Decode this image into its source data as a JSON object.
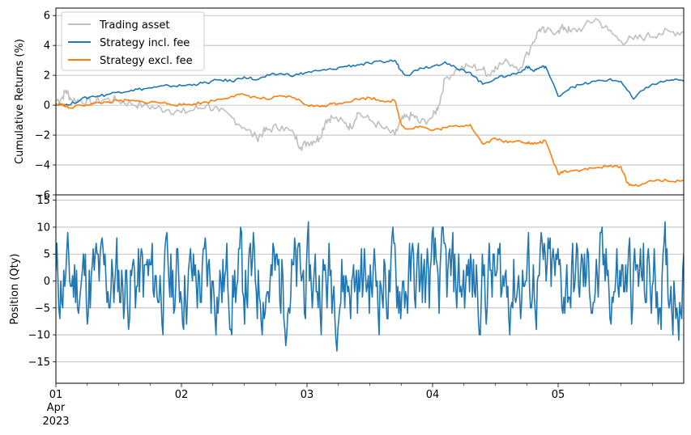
{
  "chart_data": [
    {
      "type": "line",
      "ylabel": "Cumulative Returns (%)",
      "ylim": [
        -6,
        6.5
      ],
      "yticks": [
        6,
        4,
        2,
        0,
        -2,
        -4,
        -6
      ],
      "xlim": [
        0,
        5
      ],
      "grid": "horizontal",
      "legend_position": "top-left",
      "series": [
        {
          "name": "Trading asset",
          "color": "#bfbfbf",
          "x": [
            0,
            0.05,
            0.08,
            0.12,
            0.2,
            0.3,
            0.4,
            0.5,
            0.6,
            0.7,
            0.8,
            0.9,
            1.0,
            1.1,
            1.2,
            1.3,
            1.4,
            1.5,
            1.6,
            1.65,
            1.7,
            1.8,
            1.9,
            1.95,
            2.0,
            2.05,
            2.1,
            2.15,
            2.2,
            2.3,
            2.35,
            2.4,
            2.5,
            2.6,
            2.7,
            2.75,
            2.8,
            2.85,
            2.9,
            3.0,
            3.05,
            3.1,
            3.2,
            3.3,
            3.4,
            3.45,
            3.5,
            3.6,
            3.7,
            3.8,
            3.85,
            3.9,
            4.0,
            4.05,
            4.1,
            4.2,
            4.3,
            4.4,
            4.5,
            4.6,
            4.7,
            4.8,
            4.9,
            5.0
          ],
          "values": [
            0.3,
            0.5,
            1.0,
            0.4,
            0.3,
            0.2,
            0.4,
            0.3,
            0.1,
            0.0,
            -0.2,
            -0.3,
            -0.5,
            -0.3,
            0.0,
            -0.4,
            -0.8,
            -1.5,
            -2.2,
            -1.8,
            -1.6,
            -1.4,
            -2.0,
            -2.8,
            -2.5,
            -2.4,
            -2.2,
            -1.0,
            -0.8,
            -1.2,
            -1.5,
            -0.5,
            -1.0,
            -1.5,
            -2.0,
            -1.0,
            -0.8,
            -0.7,
            -1.2,
            -0.8,
            0.0,
            1.8,
            2.4,
            2.6,
            2.4,
            2.0,
            2.6,
            2.9,
            2.5,
            4.2,
            5.1,
            4.9,
            5.0,
            5.2,
            4.9,
            5.2,
            5.8,
            5.0,
            4.3,
            4.4,
            4.6,
            4.8,
            4.9,
            4.9
          ]
        },
        {
          "name": "Strategy incl. fee",
          "color": "#1f77b4",
          "x": [
            0,
            0.1,
            0.2,
            0.3,
            0.4,
            0.5,
            0.6,
            0.7,
            0.8,
            0.9,
            1.0,
            1.1,
            1.2,
            1.3,
            1.4,
            1.5,
            1.6,
            1.7,
            1.8,
            1.9,
            2.0,
            2.1,
            2.2,
            2.3,
            2.4,
            2.5,
            2.6,
            2.7,
            2.75,
            2.8,
            2.9,
            3.0,
            3.1,
            3.2,
            3.3,
            3.4,
            3.5,
            3.6,
            3.7,
            3.75,
            3.8,
            3.85,
            3.9,
            4.0,
            4.1,
            4.2,
            4.3,
            4.4,
            4.5,
            4.6,
            4.7,
            4.8,
            4.9,
            5.0
          ],
          "values": [
            0.1,
            0.0,
            0.4,
            0.6,
            0.7,
            0.9,
            1.0,
            1.1,
            1.2,
            1.3,
            1.3,
            1.4,
            1.5,
            1.7,
            1.6,
            1.9,
            1.7,
            2.0,
            2.1,
            2.0,
            2.2,
            2.3,
            2.4,
            2.6,
            2.7,
            2.8,
            2.9,
            3.0,
            2.3,
            2.0,
            2.5,
            2.6,
            2.9,
            2.4,
            2.2,
            1.4,
            1.8,
            2.0,
            2.2,
            2.6,
            2.3,
            2.5,
            2.6,
            0.6,
            1.2,
            1.4,
            1.6,
            1.7,
            1.6,
            0.4,
            1.2,
            1.5,
            1.7,
            1.6
          ]
        },
        {
          "name": "Strategy excl. fee",
          "color": "#ff7f0e",
          "x": [
            0,
            0.05,
            0.1,
            0.2,
            0.3,
            0.4,
            0.5,
            0.6,
            0.7,
            0.8,
            0.9,
            1.0,
            1.1,
            1.2,
            1.3,
            1.4,
            1.5,
            1.6,
            1.7,
            1.8,
            1.9,
            2.0,
            2.1,
            2.2,
            2.3,
            2.4,
            2.5,
            2.6,
            2.7,
            2.75,
            2.8,
            2.9,
            3.0,
            3.1,
            3.2,
            3.3,
            3.4,
            3.5,
            3.6,
            3.7,
            3.75,
            3.8,
            3.85,
            3.9,
            4.0,
            4.05,
            4.1,
            4.2,
            4.3,
            4.4,
            4.5,
            4.55,
            4.6,
            4.7,
            4.8,
            4.9,
            5.0
          ],
          "values": [
            0.0,
            0.1,
            -0.2,
            0.0,
            0.1,
            0.2,
            0.3,
            0.3,
            0.2,
            0.2,
            0.1,
            0.0,
            0.1,
            0.2,
            0.4,
            0.6,
            0.7,
            0.5,
            0.4,
            0.6,
            0.5,
            0.0,
            -0.1,
            0.1,
            0.2,
            0.4,
            0.5,
            0.3,
            0.3,
            -1.3,
            -1.6,
            -1.4,
            -1.7,
            -1.5,
            -1.4,
            -1.3,
            -2.6,
            -2.2,
            -2.5,
            -2.4,
            -2.5,
            -2.6,
            -2.5,
            -2.4,
            -4.6,
            -4.4,
            -4.4,
            -4.3,
            -4.2,
            -4.1,
            -4.1,
            -5.2,
            -5.4,
            -5.2,
            -5.0,
            -5.1,
            -5.0
          ]
        }
      ]
    },
    {
      "type": "line",
      "ylabel": "Position (Qty)",
      "ylim": [
        -19,
        16
      ],
      "yticks": [
        15,
        10,
        5,
        0,
        -5,
        -10,
        -15
      ],
      "xlim": [
        0,
        5
      ],
      "grid": "horizontal",
      "xticks": [
        {
          "x": 0,
          "label": "01"
        },
        {
          "x": 1,
          "label": "02"
        },
        {
          "x": 2,
          "label": "03"
        },
        {
          "x": 3,
          "label": "04"
        },
        {
          "x": 4,
          "label": "05"
        }
      ],
      "x_sublabels": [
        "Apr",
        "2023"
      ],
      "series": [
        {
          "name": "",
          "color": "#1f77b4",
          "seed": 11,
          "length": 640,
          "x_range": [
            0,
            5
          ],
          "y_clip": [
            -17,
            15
          ]
        }
      ]
    }
  ]
}
